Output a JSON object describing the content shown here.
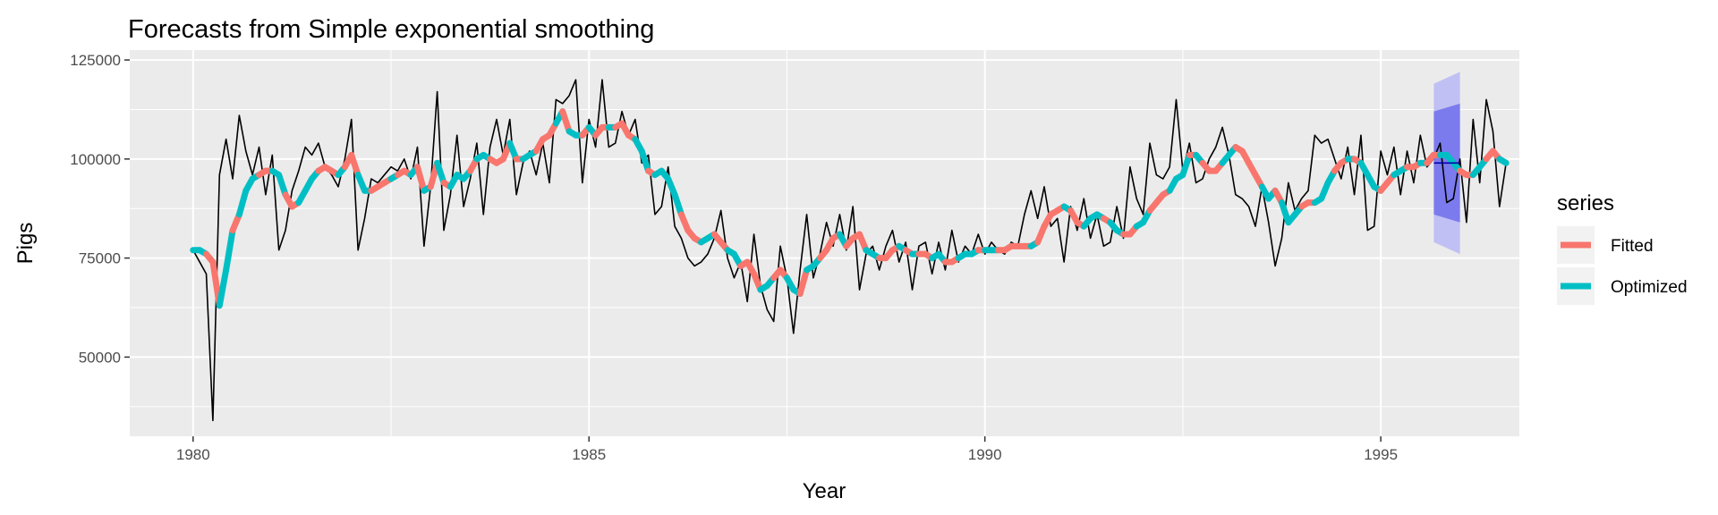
{
  "chart_data": {
    "type": "line",
    "title": "Forecasts from Simple exponential smoothing",
    "xlabel": "Year",
    "ylabel": "Pigs",
    "xlim": [
      1979.2,
      1996.75
    ],
    "ylim": [
      30000,
      127500
    ],
    "x_ticks": [
      1980,
      1985,
      1990,
      1995
    ],
    "x_tick_labels": [
      "1980",
      "1985",
      "1990",
      "1995"
    ],
    "y_ticks": [
      50000,
      75000,
      100000,
      125000
    ],
    "y_tick_labels": [
      "50000",
      "75000",
      "100000",
      "125000"
    ],
    "grid": true,
    "legend": {
      "title": "series",
      "position": "right",
      "entries": [
        {
          "name": "Fitted",
          "color": "#F8766D"
        },
        {
          "name": "Optimized",
          "color": "#00BFC4"
        }
      ]
    },
    "colors": {
      "panel_background": "#EBEBEB",
      "grid": "#FFFFFF",
      "data_line": "#000000",
      "forecast_line": "#0000AA",
      "pi80": "#7B7BEE",
      "pi95": "#C0C0F4"
    },
    "observed": {
      "x_start": 1980.0,
      "step": 0.08333,
      "values": [
        77000,
        74000,
        71000,
        34000,
        96000,
        105000,
        95000,
        111000,
        102000,
        96000,
        103000,
        91000,
        101000,
        77000,
        82000,
        92000,
        97000,
        103000,
        101000,
        104000,
        98000,
        96000,
        93000,
        100000,
        110000,
        77000,
        85000,
        95000,
        94000,
        96000,
        98000,
        97000,
        100000,
        95000,
        103000,
        78000,
        93000,
        117000,
        82000,
        91000,
        106000,
        88000,
        95000,
        104000,
        86000,
        103000,
        110000,
        101000,
        110000,
        91000,
        99000,
        102000,
        96000,
        104000,
        94000,
        115000,
        114000,
        116000,
        120000,
        94000,
        110000,
        103000,
        120000,
        103000,
        104000,
        112000,
        106000,
        110000,
        99000,
        101000,
        86000,
        88000,
        98000,
        83000,
        80000,
        75000,
        73000,
        74000,
        76000,
        80000,
        87000,
        75000,
        70000,
        74000,
        64000,
        81000,
        68000,
        62000,
        59000,
        78000,
        70000,
        56000,
        72000,
        86000,
        70000,
        76000,
        84000,
        78000,
        86000,
        77000,
        88000,
        67000,
        76000,
        78000,
        72000,
        78000,
        82000,
        74000,
        79000,
        67000,
        78000,
        79000,
        71000,
        79000,
        72000,
        82000,
        74000,
        78000,
        76000,
        81000,
        76000,
        79000,
        77000,
        76000,
        79000,
        78000,
        86000,
        92000,
        85000,
        93000,
        83000,
        85000,
        74000,
        88000,
        82000,
        90000,
        80000,
        86000,
        78000,
        79000,
        88000,
        80000,
        98000,
        90000,
        86000,
        104000,
        96000,
        95000,
        98000,
        115000,
        97000,
        104000,
        94000,
        95000,
        100000,
        103000,
        108000,
        101000,
        91000,
        90000,
        88000,
        83000,
        93000,
        84000,
        73000,
        80000,
        94000,
        87000,
        90000,
        92000,
        106000,
        104000,
        105000,
        100000,
        95000,
        103000,
        91000,
        106000,
        82000,
        83000,
        102000,
        96000,
        103000,
        91000,
        102000,
        94000,
        106000,
        98000,
        100000,
        104000,
        89000,
        90000,
        100000,
        84000,
        110000,
        94000,
        115000,
        107000,
        88000,
        99000
      ]
    },
    "smoothed": {
      "x_start": 1980.0,
      "step": 0.08333,
      "values": [
        77000,
        77000,
        76000,
        74000,
        63000,
        72000,
        82000,
        86000,
        92000,
        95000,
        96000,
        97000,
        97000,
        96000,
        91000,
        88000,
        89000,
        92000,
        95000,
        97000,
        98000,
        97000,
        96000,
        98000,
        101000,
        96000,
        92000,
        92000,
        93000,
        94000,
        95000,
        96000,
        97000,
        96000,
        98000,
        92000,
        93000,
        99000,
        94000,
        93000,
        96000,
        95000,
        97000,
        100000,
        101000,
        100000,
        99000,
        100000,
        104000,
        100000,
        100000,
        101000,
        102000,
        105000,
        106000,
        109000,
        112000,
        107000,
        106000,
        106000,
        108000,
        106000,
        108000,
        108000,
        108000,
        109000,
        106000,
        105000,
        102000,
        97000,
        96000,
        97000,
        95000,
        91000,
        86000,
        82000,
        80000,
        79000,
        80000,
        81000,
        79000,
        77000,
        76000,
        73000,
        74000,
        71000,
        67000,
        68000,
        70000,
        72000,
        70000,
        67000,
        66000,
        72000,
        73000,
        75000,
        77000,
        80000,
        81000,
        78000,
        80000,
        81000,
        77000,
        76000,
        75000,
        75000,
        77000,
        78000,
        77000,
        76000,
        76000,
        76000,
        75000,
        76000,
        74000,
        74000,
        75000,
        76000,
        76000,
        77000,
        77000,
        77000,
        77000,
        77000,
        78000,
        78000,
        78000,
        78000,
        79000,
        83000,
        86000,
        87000,
        88000,
        87000,
        84000,
        83000,
        85000,
        86000,
        85000,
        84000,
        82000,
        81000,
        81000,
        83000,
        84000,
        87000,
        89000,
        91000,
        92000,
        95000,
        96000,
        101000,
        101000,
        99000,
        97000,
        97000,
        99000,
        101000,
        103000,
        102000,
        99000,
        96000,
        93000,
        90000,
        92000,
        89000,
        84000,
        86000,
        88000,
        89000,
        89000,
        90000,
        94000,
        97000,
        99000,
        100000,
        100000,
        99000,
        96000,
        93000,
        92000,
        94000,
        96000,
        97000,
        98000,
        98000,
        99000,
        99000,
        101000,
        101000,
        101000,
        99000,
        97000,
        96000,
        96000,
        98000,
        100000,
        102000,
        100000,
        99000
      ],
      "segment_series": [
        "Optimized",
        "Optimized",
        "Fitted",
        "Fitted",
        "Optimized",
        "Optimized",
        "Fitted",
        "Optimized",
        "Optimized",
        "Optimized",
        "Fitted",
        "Fitted",
        "Optimized",
        "Optimized",
        "Fitted",
        "Fitted",
        "Optimized",
        "Optimized",
        "Optimized",
        "Fitted",
        "Fitted",
        "Fitted",
        "Optimized",
        "Fitted",
        "Fitted",
        "Optimized",
        "Optimized",
        "Fitted",
        "Fitted",
        "Fitted",
        "Optimized",
        "Fitted",
        "Fitted",
        "Optimized",
        "Fitted",
        "Optimized",
        "Fitted",
        "Optimized",
        "Fitted",
        "Optimized",
        "Optimized",
        "Optimized",
        "Fitted",
        "Optimized",
        "Optimized",
        "Fitted",
        "Fitted",
        "Fitted",
        "Optimized",
        "Fitted",
        "Optimized",
        "Optimized",
        "Fitted",
        "Fitted",
        "Fitted",
        "Optimized",
        "Fitted",
        "Optimized",
        "Optimized",
        "Fitted",
        "Optimized",
        "Fitted",
        "Fitted",
        "Optimized",
        "Fitted",
        "Fitted",
        "Fitted",
        "Optimized",
        "Optimized",
        "Fitted",
        "Optimized",
        "Optimized",
        "Optimized",
        "Optimized",
        "Fitted",
        "Fitted",
        "Fitted",
        "Optimized",
        "Optimized",
        "Fitted",
        "Fitted",
        "Optimized",
        "Optimized",
        "Fitted",
        "Fitted",
        "Fitted",
        "Optimized",
        "Optimized",
        "Fitted",
        "Fitted",
        "Optimized",
        "Optimized",
        "Fitted",
        "Optimized",
        "Optimized",
        "Fitted",
        "Fitted",
        "Fitted",
        "Optimized",
        "Fitted",
        "Fitted",
        "Fitted",
        "Optimized",
        "Optimized",
        "Fitted",
        "Fitted",
        "Fitted",
        "Optimized",
        "Fitted",
        "Optimized",
        "Fitted",
        "Fitted",
        "Optimized",
        "Optimized",
        "Fitted",
        "Fitted",
        "Optimized",
        "Optimized",
        "Optimized",
        "Fitted",
        "Optimized",
        "Optimized",
        "Fitted",
        "Fitted",
        "Fitted",
        "Fitted",
        "Fitted",
        "Optimized",
        "Fitted",
        "Fitted",
        "Fitted",
        "Fitted",
        "Optimized",
        "Fitted",
        "Fitted",
        "Optimized",
        "Optimized",
        "Optimized",
        "Fitted",
        "Optimized",
        "Optimized",
        "Fitted",
        "Fitted",
        "Optimized",
        "Optimized",
        "Fitted",
        "Fitted",
        "Fitted",
        "Optimized",
        "Optimized",
        "Optimized",
        "Fitted",
        "Optimized",
        "Fitted",
        "Fitted",
        "Fitted",
        "Optimized",
        "Optimized",
        "Fitted",
        "Fitted",
        "Fitted",
        "Fitted",
        "Optimized",
        "Optimized",
        "Fitted",
        "Optimized",
        "Optimized",
        "Optimized",
        "Fitted",
        "Fitted",
        "Optimized",
        "Optimized",
        "Optimized",
        "Fitted",
        "Fitted",
        "Optimized",
        "Fitted",
        "Optimized",
        "Optimized",
        "Optimized",
        "Fitted",
        "Fitted",
        "Optimized",
        "Optimized",
        "Fitted",
        "Fitted",
        "Optimized",
        "Fitted",
        "Fitted",
        "Optimized",
        "Optimized",
        "Optimized",
        "Fitted",
        "Fitted",
        "Optimized",
        "Optimized",
        "Fitted",
        "Fitted",
        "Optimized"
      ]
    },
    "forecast": {
      "x": [
        1995.67,
        1996.0
      ],
      "point": [
        99000,
        99000
      ],
      "lo80": [
        86000,
        84000
      ],
      "hi80": [
        112000,
        114000
      ],
      "lo95": [
        79000,
        76000
      ],
      "hi95": [
        119000,
        122000
      ]
    }
  }
}
